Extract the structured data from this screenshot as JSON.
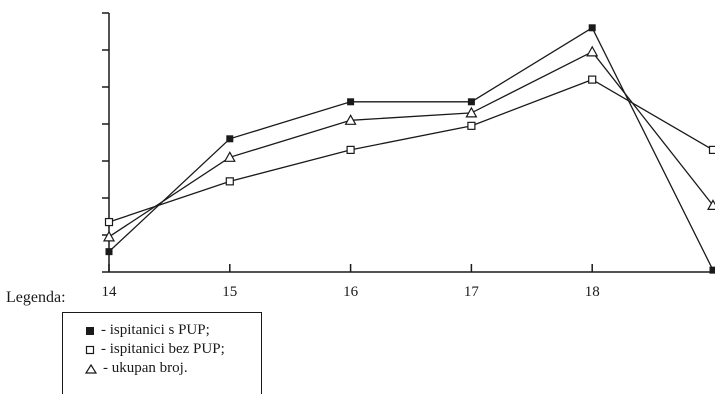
{
  "chart_data": {
    "type": "line",
    "x": [
      14,
      15,
      16,
      17,
      18,
      19
    ],
    "xticks": [
      "14",
      "15",
      "16",
      "17",
      "18"
    ],
    "xlim": [
      14,
      19
    ],
    "ylim": [
      0,
      7
    ],
    "yticks_labeled": false,
    "y_tick_count": 8,
    "series": [
      {
        "name": "ispitanici s PUP;",
        "marker": "filled-square",
        "color": "#1a1a1a",
        "values": [
          0.55,
          3.6,
          4.6,
          4.6,
          6.6,
          0.05
        ]
      },
      {
        "name": "ispitanici bez PUP;",
        "marker": "open-square",
        "color": "#1a1a1a",
        "values": [
          1.35,
          2.45,
          3.3,
          3.95,
          5.2,
          3.3
        ]
      },
      {
        "name": "ukupan broj.",
        "marker": "open-triangle",
        "color": "#1a1a1a",
        "values": [
          0.95,
          3.1,
          4.1,
          4.3,
          5.95,
          1.8
        ]
      }
    ],
    "legend": {
      "title": "Legenda:",
      "placement": "bottom-left"
    },
    "grid": false
  }
}
